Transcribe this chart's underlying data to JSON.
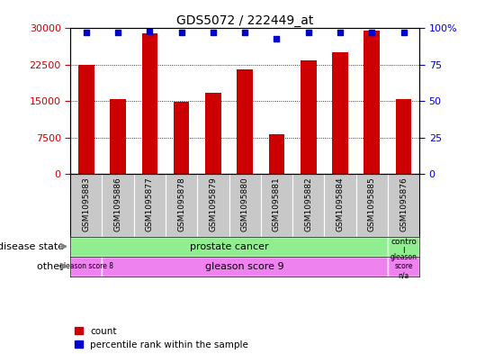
{
  "title": "GDS5072 / 222449_at",
  "samples": [
    "GSM1095883",
    "GSM1095886",
    "GSM1095877",
    "GSM1095878",
    "GSM1095879",
    "GSM1095880",
    "GSM1095881",
    "GSM1095882",
    "GSM1095884",
    "GSM1095885",
    "GSM1095876"
  ],
  "counts": [
    22500,
    15500,
    29000,
    14900,
    16700,
    21500,
    8200,
    23500,
    25000,
    29500,
    15500
  ],
  "percentile_ranks": [
    97,
    97,
    98,
    97,
    97,
    97,
    93,
    97,
    97,
    97,
    97
  ],
  "ylim_left": [
    0,
    30000
  ],
  "ylim_right": [
    0,
    100
  ],
  "yticks_left": [
    0,
    7500,
    15000,
    22500,
    30000
  ],
  "yticks_right": [
    0,
    25,
    50,
    75,
    100
  ],
  "bar_color": "#cc0000",
  "dot_color": "#0000cc",
  "bar_width": 0.5,
  "tick_label_color": "#cc0000",
  "right_tick_color": "#0000cc",
  "plot_bg": "#ffffff",
  "xtick_area_bg": "#c8c8c8",
  "ds_colors": [
    "#90ee90",
    "#90ee90"
  ],
  "oth_colors": [
    "#ee82ee",
    "#ee82ee",
    "#ee82ee"
  ],
  "legend_labels": [
    "count",
    "percentile rank within the sample"
  ],
  "legend_colors": [
    "#cc0000",
    "#0000cc"
  ],
  "row_label_1": "disease state",
  "row_label_2": "other",
  "row_arrow_color": "#808080"
}
